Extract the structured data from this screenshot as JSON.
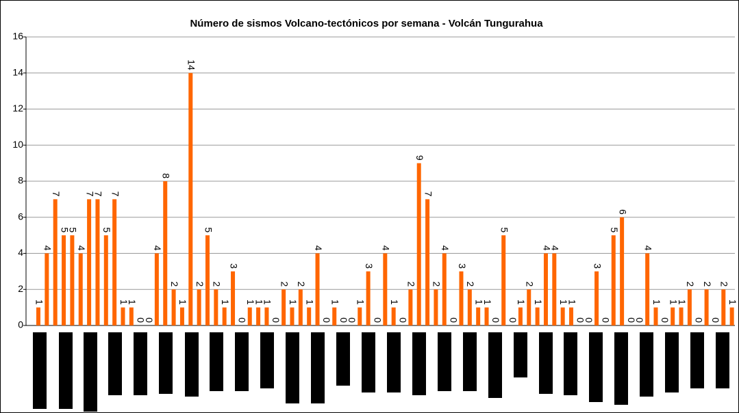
{
  "chart_data": {
    "type": "bar",
    "title": "Número de sismos Volcano-tectónicos por semana - Volcán Tungurahua",
    "categories": [
      null,
      null,
      null,
      null,
      null,
      null,
      null,
      null,
      null,
      null,
      null,
      null,
      null,
      null,
      null,
      null,
      null,
      null,
      null,
      null,
      null,
      null,
      null,
      null,
      null,
      null,
      null,
      null,
      null,
      null,
      null,
      null,
      null,
      null,
      null,
      null,
      null,
      null,
      null,
      null,
      null,
      null,
      null,
      null,
      null,
      null,
      null,
      null,
      null,
      null,
      null,
      null,
      null,
      null,
      null,
      null,
      null,
      null,
      null,
      null,
      null,
      null,
      null,
      null,
      null,
      null,
      null,
      null,
      null,
      null,
      null,
      null,
      null,
      null,
      null,
      null,
      null,
      null,
      null,
      null,
      null,
      null,
      null
    ],
    "values": [
      1,
      4,
      7,
      5,
      5,
      4,
      7,
      7,
      5,
      7,
      1,
      1,
      0,
      0,
      4,
      8,
      2,
      1,
      14,
      2,
      5,
      2,
      1,
      3,
      0,
      1,
      1,
      1,
      0,
      2,
      1,
      2,
      1,
      4,
      0,
      1,
      0,
      0,
      1,
      3,
      0,
      4,
      1,
      0,
      2,
      9,
      7,
      2,
      4,
      0,
      3,
      2,
      1,
      1,
      0,
      5,
      0,
      1,
      2,
      1,
      4,
      4,
      1,
      1,
      0,
      0,
      3,
      0,
      5,
      6,
      0,
      0,
      4,
      1,
      0,
      1,
      1,
      2,
      0,
      2,
      0,
      2,
      1
    ],
    "color": "#ff6600",
    "ylim": [
      0,
      16
    ],
    "yticks": [
      0,
      2,
      4,
      6,
      8,
      10,
      12,
      14,
      16
    ],
    "grid": true
  }
}
